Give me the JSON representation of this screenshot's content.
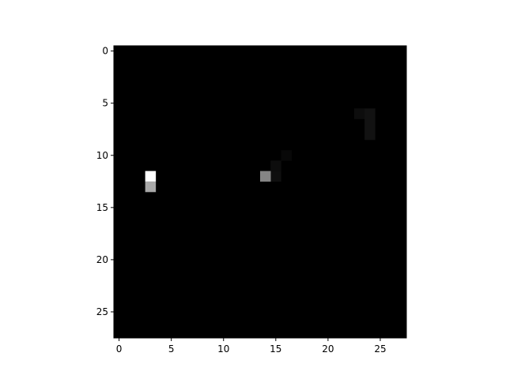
{
  "chart_data": {
    "type": "heatmap",
    "colormap": "gray",
    "colors": {
      "low": "#000000",
      "high": "#ffffff",
      "axis": "#000000"
    },
    "grid": false,
    "rows": 28,
    "cols": 28,
    "xlim": [
      -0.5,
      27.5
    ],
    "ylim": [
      27.5,
      -0.5
    ],
    "x_ticks": [
      0,
      5,
      10,
      15,
      20,
      25
    ],
    "y_ticks": [
      0,
      5,
      10,
      15,
      20,
      25
    ],
    "x_tick_labels": [
      "0",
      "5",
      "10",
      "15",
      "20",
      "25"
    ],
    "y_tick_labels": [
      "0",
      "5",
      "10",
      "15",
      "20",
      "25"
    ],
    "value_range": [
      0,
      1
    ],
    "nonzero_cells": [
      {
        "row": 6,
        "col": 23,
        "value": 0.05
      },
      {
        "row": 6,
        "col": 24,
        "value": 0.07
      },
      {
        "row": 7,
        "col": 24,
        "value": 0.07
      },
      {
        "row": 8,
        "col": 24,
        "value": 0.07
      },
      {
        "row": 10,
        "col": 16,
        "value": 0.03
      },
      {
        "row": 11,
        "col": 15,
        "value": 0.05
      },
      {
        "row": 12,
        "col": 15,
        "value": 0.06
      },
      {
        "row": 12,
        "col": 14,
        "value": 0.52
      },
      {
        "row": 12,
        "col": 3,
        "value": 1.0
      },
      {
        "row": 13,
        "col": 3,
        "value": 0.66
      }
    ]
  }
}
